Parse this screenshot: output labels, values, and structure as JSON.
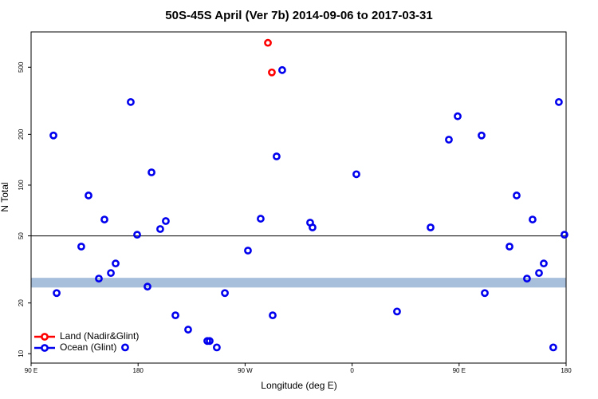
{
  "chart_data": {
    "type": "scatter",
    "title": "50S-45S April (Ver 7b)   2014-09-06 to 2017-03-31",
    "xlabel": "Longitude (deg E)",
    "ylabel": "N Total",
    "xlim": [
      90,
      540
    ],
    "ylim": [
      8.8,
      810
    ],
    "log_y": true,
    "xticks": [
      {
        "value": 90,
        "label": "90 E"
      },
      180,
      {
        "value": 270,
        "label": "90 W"
      },
      {
        "value": 360,
        "label": "0"
      },
      {
        "value": 450,
        "label": "90 E"
      },
      {
        "value": 540,
        "label": "180"
      }
    ],
    "yticks": [
      10,
      20,
      50,
      100,
      200,
      500
    ],
    "hline": 50,
    "band": [
      24.7,
      28.2
    ],
    "band_color": "#a8bfdc",
    "legend": "bottom-left",
    "series": [
      {
        "name": "Land (Nadir&Glint)",
        "color": "#ff0000",
        "x": [
          289.2,
          292.5
        ],
        "values": [
          698,
          466
        ]
      },
      {
        "name": "Ocean (Glint)",
        "color": "#0000ee",
        "x": [
          108.8,
          111.5,
          132.2,
          138.3,
          147.0,
          151.7,
          157.1,
          161.1,
          169.1,
          173.8,
          179.2,
          187.9,
          191.3,
          198.6,
          203.3,
          211.4,
          222.1,
          238.2,
          240.2,
          246.2,
          253.0,
          272.4,
          283.1,
          293.2,
          296.5,
          301.2,
          324.7,
          326.7,
          363.6,
          397.8,
          426.0,
          441.4,
          448.8,
          468.9,
          471.6,
          492.4,
          498.4,
          507.1,
          511.8,
          517.2,
          521.2,
          529.2,
          533.9,
          538.6
        ],
        "values": [
          197,
          22.9,
          43.2,
          86.8,
          27.9,
          62.5,
          30.1,
          34.3,
          10.9,
          311,
          50.8,
          25.0,
          119,
          54.9,
          61.2,
          16.9,
          13.9,
          11.9,
          11.9,
          10.9,
          22.9,
          40.9,
          63.2,
          16.9,
          148,
          481,
          59.9,
          56.1,
          116,
          17.8,
          56.1,
          186,
          256,
          197,
          22.9,
          43.2,
          86.8,
          27.9,
          62.5,
          30.1,
          34.3,
          10.9,
          311,
          50.8
        ]
      }
    ]
  }
}
